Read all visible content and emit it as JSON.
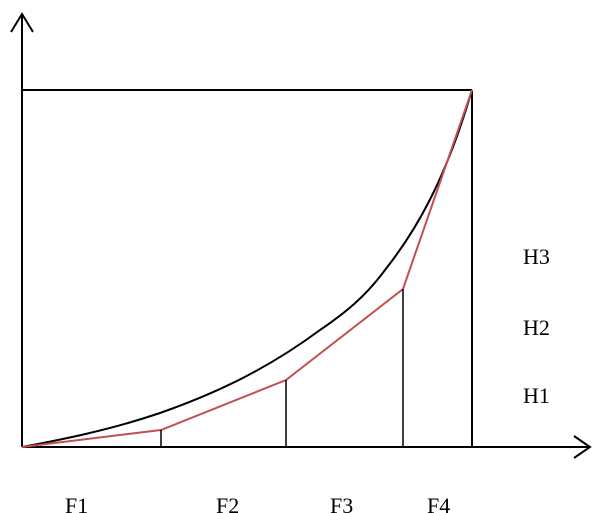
{
  "colors": {
    "axis": "#000000",
    "curve": "#000000",
    "polyline": "#c0504d",
    "background": "#ffffff"
  },
  "diagram": {
    "right_labels": [
      "H3",
      "H2",
      "H1"
    ],
    "bottom_labels": [
      "F1",
      "F2",
      "F3",
      "F4"
    ]
  }
}
